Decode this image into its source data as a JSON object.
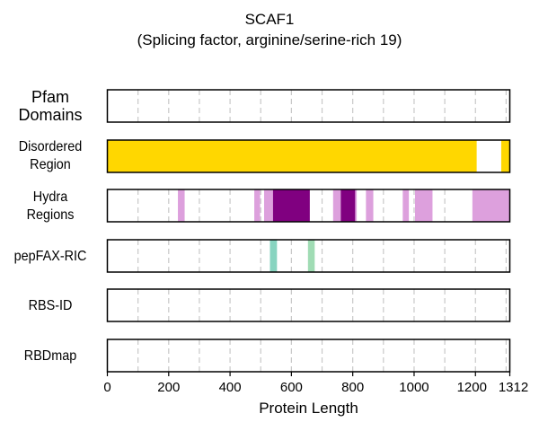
{
  "chart_data": {
    "type": "bar",
    "title": "SCAF1",
    "subtitle": "(Splicing factor, arginine/serine-rich 19)",
    "xlabel": "Protein Length",
    "xlim": [
      0,
      1312
    ],
    "x_ticks": [
      0,
      200,
      400,
      600,
      800,
      1000,
      1200,
      1312
    ],
    "x_tick_labels": [
      "0",
      "200",
      "400",
      "600",
      "800",
      "1000",
      "1200",
      "1312"
    ],
    "grid_x": [
      100,
      200,
      300,
      400,
      500,
      600,
      700,
      800,
      900,
      1000,
      1100,
      1200,
      1300
    ],
    "tracks": [
      {
        "key": "pfam",
        "label_lines": [
          "Pfam",
          "Domains"
        ],
        "segments": []
      },
      {
        "key": "disordered",
        "label_lines": [
          "Disordered",
          "Region"
        ],
        "segments": [
          {
            "start": 0,
            "end": 1204,
            "color": "#FFD700"
          },
          {
            "start": 1284,
            "end": 1312,
            "color": "#FFD700"
          }
        ]
      },
      {
        "key": "hydra",
        "label_lines": [
          "Hydra",
          "Regions"
        ],
        "segments": [
          {
            "start": 230,
            "end": 252,
            "color": "#DDA0DD"
          },
          {
            "start": 479,
            "end": 498,
            "color": "#DDA0DD"
          },
          {
            "start": 511,
            "end": 540,
            "color": "#DDA0DD"
          },
          {
            "start": 540,
            "end": 660,
            "color": "#800080"
          },
          {
            "start": 736,
            "end": 761,
            "color": "#DDA0DD"
          },
          {
            "start": 761,
            "end": 808,
            "color": "#800080"
          },
          {
            "start": 808,
            "end": 813,
            "color": "#DDA0DD"
          },
          {
            "start": 843,
            "end": 867,
            "color": "#DDA0DD"
          },
          {
            "start": 963,
            "end": 983,
            "color": "#DDA0DD"
          },
          {
            "start": 1003,
            "end": 1060,
            "color": "#DDA0DD"
          },
          {
            "start": 1190,
            "end": 1312,
            "color": "#DDA0DD"
          }
        ]
      },
      {
        "key": "pepfax",
        "label_lines": [
          "pepFAX-RIC"
        ],
        "segments": [
          {
            "start": 530,
            "end": 553,
            "color": "#88D4C0"
          },
          {
            "start": 654,
            "end": 676,
            "color": "#A0DCB4"
          }
        ]
      },
      {
        "key": "rbsid",
        "label_lines": [
          "RBS-ID"
        ],
        "segments": []
      },
      {
        "key": "rbdmap",
        "label_lines": [
          "RBDmap"
        ],
        "segments": []
      }
    ]
  }
}
